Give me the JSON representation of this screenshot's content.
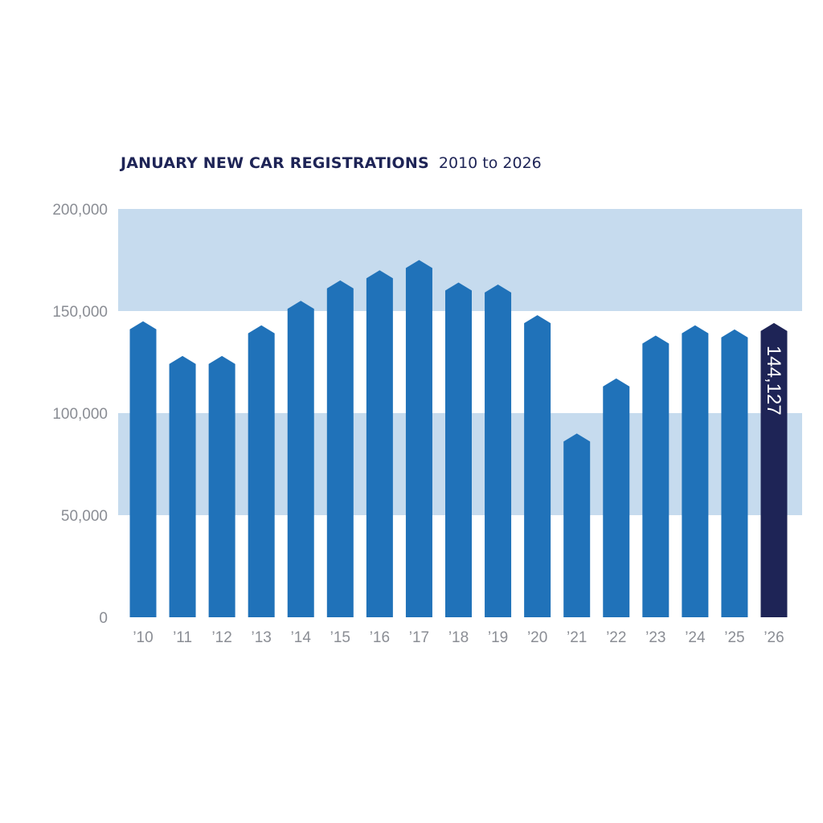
{
  "chart_data": {
    "type": "bar",
    "title": "JANUARY NEW CAR REGISTRATIONS",
    "subtitle": "2010 to 2026",
    "categories": [
      "’10",
      "’11",
      "’12",
      "’13",
      "’14",
      "’15",
      "’16",
      "’17",
      "’18",
      "’19",
      "’20",
      "’21",
      "’22",
      "’23",
      "’24",
      "’25",
      "’26"
    ],
    "values": [
      145000,
      128000,
      128000,
      143000,
      155000,
      165000,
      170000,
      175000,
      164000,
      163000,
      148000,
      90000,
      117000,
      138000,
      143000,
      141000,
      144127
    ],
    "highlight_index": 16,
    "highlight_label": "144,127",
    "ylim": [
      0,
      200000
    ],
    "yticks": [
      0,
      50000,
      100000,
      150000,
      200000
    ],
    "ytick_labels": [
      "0",
      "50,000",
      "100,000",
      "150,000",
      "200,000"
    ],
    "xlabel": "",
    "ylabel": "",
    "grid": "alternating bands",
    "colors": {
      "bar": "#2072b9",
      "highlight": "#1e2456",
      "band": "#c6dbee",
      "title": "#1e2456",
      "tick": "#8a8d94"
    }
  }
}
